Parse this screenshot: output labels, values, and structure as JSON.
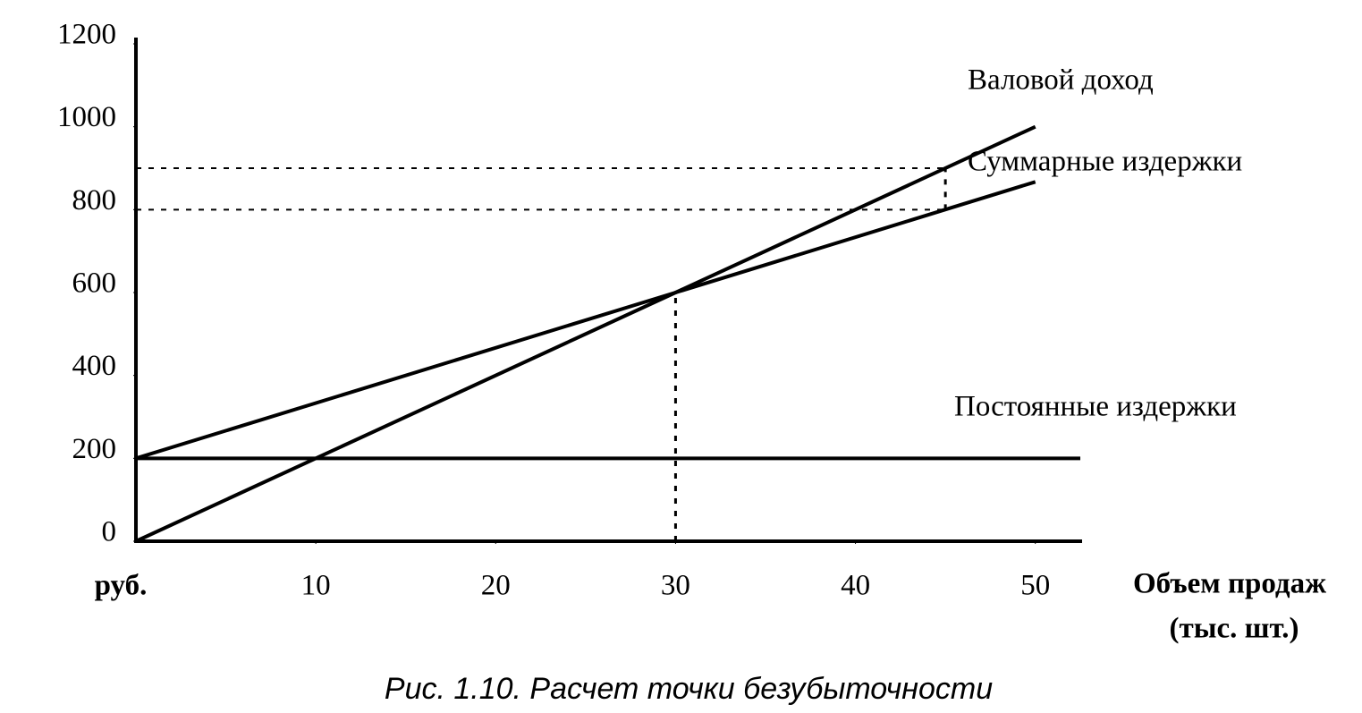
{
  "chart_data": {
    "type": "line",
    "caption": "Рис. 1.10. Расчет точки безубыточности",
    "y_unit_label": "руб.",
    "x_label": [
      "Объем продаж",
      "(тыс. шт.)"
    ],
    "xlim": [
      0,
      52.5
    ],
    "ylim": [
      0,
      1200
    ],
    "xticks": [
      10,
      20,
      30,
      40,
      50
    ],
    "yticks": [
      0,
      200,
      400,
      600,
      800,
      1000,
      1200
    ],
    "series": [
      {
        "name": "Валовой доход",
        "color": "#000000",
        "x": [
          0,
          30,
          50
        ],
        "values": [
          0,
          600,
          1000
        ]
      },
      {
        "name": "Суммарные издержки",
        "color": "#000000",
        "x": [
          0,
          30,
          50
        ],
        "values": [
          200,
          600,
          867
        ]
      },
      {
        "name": "Постоянные издержки",
        "color": "#000000",
        "x": [
          0,
          52.5
        ],
        "values": [
          200,
          200
        ]
      }
    ],
    "dashed_vertical": [
      {
        "x": 30,
        "y": [
          0,
          600
        ]
      },
      {
        "x": 45,
        "y": [
          800,
          900
        ]
      }
    ],
    "dashed_horizontal": [
      {
        "y": 900,
        "x": 45
      },
      {
        "y": 800,
        "x": 45
      }
    ]
  }
}
